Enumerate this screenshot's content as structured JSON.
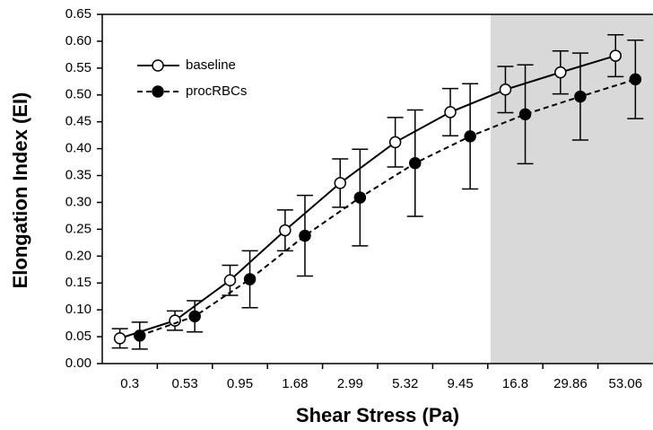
{
  "chart_data": {
    "type": "line",
    "x_label": "Shear Stress (Pa)",
    "y_label": "Elongation Index (EI)",
    "categories": [
      "0.3",
      "0.53",
      "0.95",
      "1.68",
      "2.99",
      "5.32",
      "9.45",
      "16.8",
      "29.86",
      "53.06"
    ],
    "series": [
      {
        "name": "baseline",
        "color": "#000000",
        "marker": "open",
        "dash": false,
        "values": [
          0.047,
          0.08,
          0.155,
          0.248,
          0.336,
          0.412,
          0.468,
          0.51,
          0.542,
          0.573
        ],
        "errors": [
          0.018,
          0.018,
          0.028,
          0.038,
          0.045,
          0.046,
          0.044,
          0.043,
          0.04,
          0.039
        ]
      },
      {
        "name": "procRBCs",
        "color": "#000000",
        "marker": "filled",
        "dash": true,
        "values": [
          0.052,
          0.088,
          0.157,
          0.238,
          0.309,
          0.373,
          0.423,
          0.464,
          0.497,
          0.529
        ],
        "errors": [
          0.025,
          0.029,
          0.053,
          0.075,
          0.09,
          0.099,
          0.098,
          0.092,
          0.081,
          0.073
        ]
      }
    ],
    "ylim": [
      0,
      0.65
    ],
    "yticks": [
      {
        "value": 0,
        "label": "0.00"
      },
      {
        "value": 0.05,
        "label": "0.05"
      },
      {
        "value": 0.1,
        "label": "0.10"
      },
      {
        "value": 0.15,
        "label": "0.15"
      },
      {
        "value": 0.2,
        "label": "0.20"
      },
      {
        "value": 0.25,
        "label": "0.25"
      },
      {
        "value": 0.3,
        "label": "0.30"
      },
      {
        "value": 0.35,
        "label": "0.35"
      },
      {
        "value": 0.4,
        "label": "0.40"
      },
      {
        "value": 0.45,
        "label": "0.45"
      },
      {
        "value": 0.5,
        "label": "0.50"
      },
      {
        "value": 0.55,
        "label": "0.55"
      },
      {
        "value": 0.6,
        "label": "0.60"
      },
      {
        "value": 0.65,
        "label": "0.65"
      }
    ],
    "grid": false,
    "legend": "upper left"
  }
}
